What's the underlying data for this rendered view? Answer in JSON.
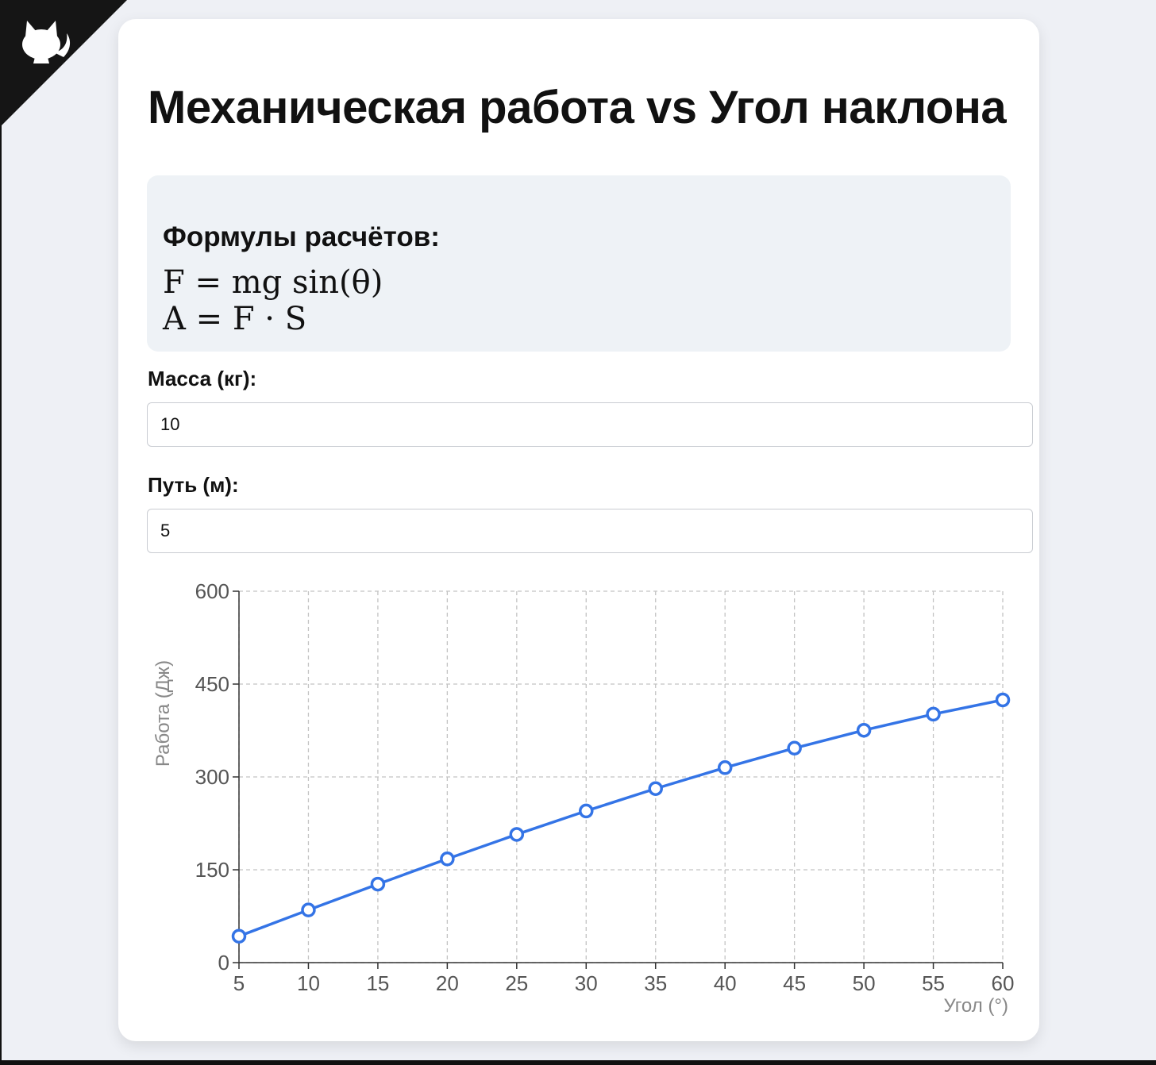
{
  "page": {
    "title": "Механическая работа vs Угол наклона"
  },
  "formulas": {
    "heading": "Формулы расчётов:",
    "lines": [
      "F = mg sin(θ)",
      "A = F · S"
    ]
  },
  "inputs": {
    "mass_label": "Масса (кг):",
    "mass_value": "10",
    "path_label": "Путь (м):",
    "path_value": "5"
  },
  "colors": {
    "series": "#3474e6",
    "corner": "#151515"
  },
  "icons": {
    "corner": "github-octocat-icon"
  },
  "chart_data": {
    "type": "line",
    "title": "",
    "xlabel": "Угол (°)",
    "ylabel": "Работа (Дж)",
    "x": [
      5,
      10,
      15,
      20,
      25,
      30,
      35,
      40,
      45,
      50,
      55,
      60
    ],
    "x_ticks": [
      "5",
      "10",
      "15",
      "20",
      "25",
      "30",
      "35",
      "40",
      "45",
      "50",
      "55",
      "60"
    ],
    "y_ticks": [
      "0",
      "150",
      "300",
      "450",
      "600"
    ],
    "xlim": [
      5,
      60
    ],
    "ylim": [
      0,
      600
    ],
    "grid": true,
    "series": [
      {
        "name": "",
        "values": [
          42.7,
          85.1,
          126.8,
          167.6,
          207.1,
          245.0,
          281.1,
          315.0,
          346.5,
          375.4,
          401.4,
          424.4
        ]
      }
    ]
  }
}
